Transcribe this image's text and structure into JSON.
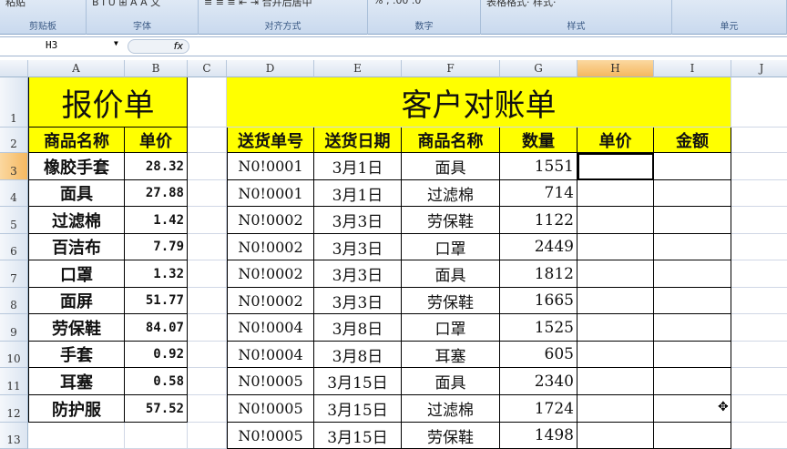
{
  "ribbon": {
    "groups": [
      {
        "label": "剪贴板",
        "tools": "粘贴"
      },
      {
        "label": "字体",
        "tools": "B I U ⊞ A A 文"
      },
      {
        "label": "对齐方式",
        "tools": "≡ ≡ ≡ ⇤ ⇥ 合并后居中"
      },
      {
        "label": "数字",
        "tools": "% , .00 .0"
      },
      {
        "label": "样式",
        "tools": "表格格式· 样式·"
      },
      {
        "label": "单元",
        "tools": ""
      }
    ]
  },
  "formula_bar": {
    "name_box": "H3",
    "fx": "fx",
    "value": ""
  },
  "columns": [
    "A",
    "B",
    "C",
    "D",
    "E",
    "F",
    "G",
    "H",
    "I",
    "J"
  ],
  "selected_column": "H",
  "selected_row": "3",
  "rows": [
    "1",
    "2",
    "3",
    "4",
    "5",
    "6",
    "7",
    "8",
    "9",
    "10",
    "11",
    "12",
    "13"
  ],
  "quote": {
    "title": "报价单",
    "headers": [
      "商品名称",
      "单价"
    ],
    "items": [
      [
        "橡胶手套",
        "28.32"
      ],
      [
        "面具",
        "27.88"
      ],
      [
        "过滤棉",
        "1.42"
      ],
      [
        "百洁布",
        "7.79"
      ],
      [
        "口罩",
        "1.32"
      ],
      [
        "面屏",
        "51.77"
      ],
      [
        "劳保鞋",
        "84.07"
      ],
      [
        "手套",
        "0.92"
      ],
      [
        "耳塞",
        "0.58"
      ],
      [
        "防护服",
        "57.52"
      ]
    ]
  },
  "statement": {
    "title": "客户对账单",
    "headers": [
      "送货单号",
      "送货日期",
      "商品名称",
      "数量",
      "单价",
      "金额"
    ],
    "items": [
      [
        "N0!0001",
        "3月1日",
        "面具",
        "1551"
      ],
      [
        "N0!0001",
        "3月1日",
        "过滤棉",
        "714"
      ],
      [
        "N0!0002",
        "3月3日",
        "劳保鞋",
        "1122"
      ],
      [
        "N0!0002",
        "3月3日",
        "口罩",
        "2449"
      ],
      [
        "N0!0002",
        "3月3日",
        "面具",
        "1812"
      ],
      [
        "N0!0002",
        "3月3日",
        "劳保鞋",
        "1665"
      ],
      [
        "N0!0004",
        "3月8日",
        "口罩",
        "1525"
      ],
      [
        "N0!0004",
        "3月8日",
        "耳塞",
        "605"
      ],
      [
        "N0!0005",
        "3月15日",
        "面具",
        "2340"
      ],
      [
        "N0!0005",
        "3月15日",
        "过滤棉",
        "1724"
      ],
      [
        "N0!0005",
        "3月15日",
        "劳保鞋",
        "1498"
      ]
    ]
  }
}
